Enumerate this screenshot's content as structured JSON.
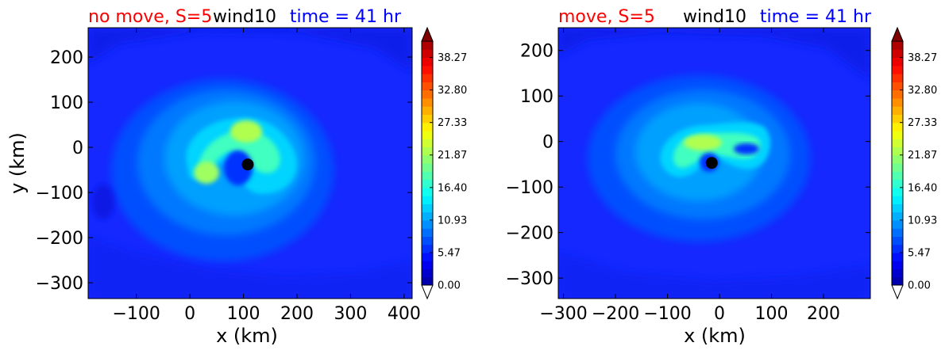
{
  "colors": {
    "red": "#ff0000",
    "blue": "#0000ff",
    "black": "#000000",
    "field_background": "#1428ff",
    "storm_center_marker": "#000000"
  },
  "colormap": "jet",
  "chart_data": [
    {
      "type": "contourf",
      "title_left": "no move, S=5",
      "title_center": "wind10",
      "title_right": "time = 41 hr",
      "xlabel": "x (km)",
      "ylabel": "y (km)",
      "xlim": [
        -190,
        415
      ],
      "ylim": [
        -335,
        265
      ],
      "xticks": [
        -100,
        0,
        100,
        200,
        300,
        400
      ],
      "yticks": [
        200,
        100,
        0,
        -100,
        -200,
        -300
      ],
      "xtick_labels": [
        "−100",
        "0",
        "100",
        "200",
        "300",
        "400"
      ],
      "ytick_labels": [
        "200",
        "100",
        "0",
        "−100",
        "−200",
        "−300"
      ],
      "storm_center": [
        108,
        -38
      ],
      "colorbar": {
        "min": 0.0,
        "max": 41.0,
        "extend": "both",
        "tick_values": [
          0.0,
          5.47,
          10.93,
          16.4,
          21.87,
          27.33,
          32.8,
          38.27
        ],
        "tick_labels": [
          "0.00",
          "5.47",
          "10.93",
          "16.40",
          "21.87",
          "27.33",
          "32.80",
          "38.27"
        ]
      }
    },
    {
      "type": "contourf",
      "title_left": "move, S=5",
      "title_center": "wind10",
      "title_right": "time = 41 hr",
      "xlabel": "x (km)",
      "ylabel": "",
      "xlim": [
        -310,
        290
      ],
      "ylim": [
        -345,
        250
      ],
      "xticks": [
        -300,
        -200,
        -100,
        0,
        100,
        200
      ],
      "yticks": [
        200,
        100,
        0,
        -100,
        -200,
        -300
      ],
      "xtick_labels": [
        "−300",
        "−200",
        "−100",
        "0",
        "100",
        "200"
      ],
      "ytick_labels": [
        "200",
        "100",
        "0",
        "−100",
        "−200",
        "−300"
      ],
      "storm_center": [
        -15,
        -47
      ],
      "colorbar": {
        "min": 0.0,
        "max": 41.0,
        "extend": "both",
        "tick_values": [
          0.0,
          5.47,
          10.93,
          16.4,
          21.87,
          27.33,
          32.8,
          38.27
        ],
        "tick_labels": [
          "0.00",
          "5.47",
          "10.93",
          "16.40",
          "21.87",
          "27.33",
          "32.80",
          "38.27"
        ]
      }
    }
  ]
}
